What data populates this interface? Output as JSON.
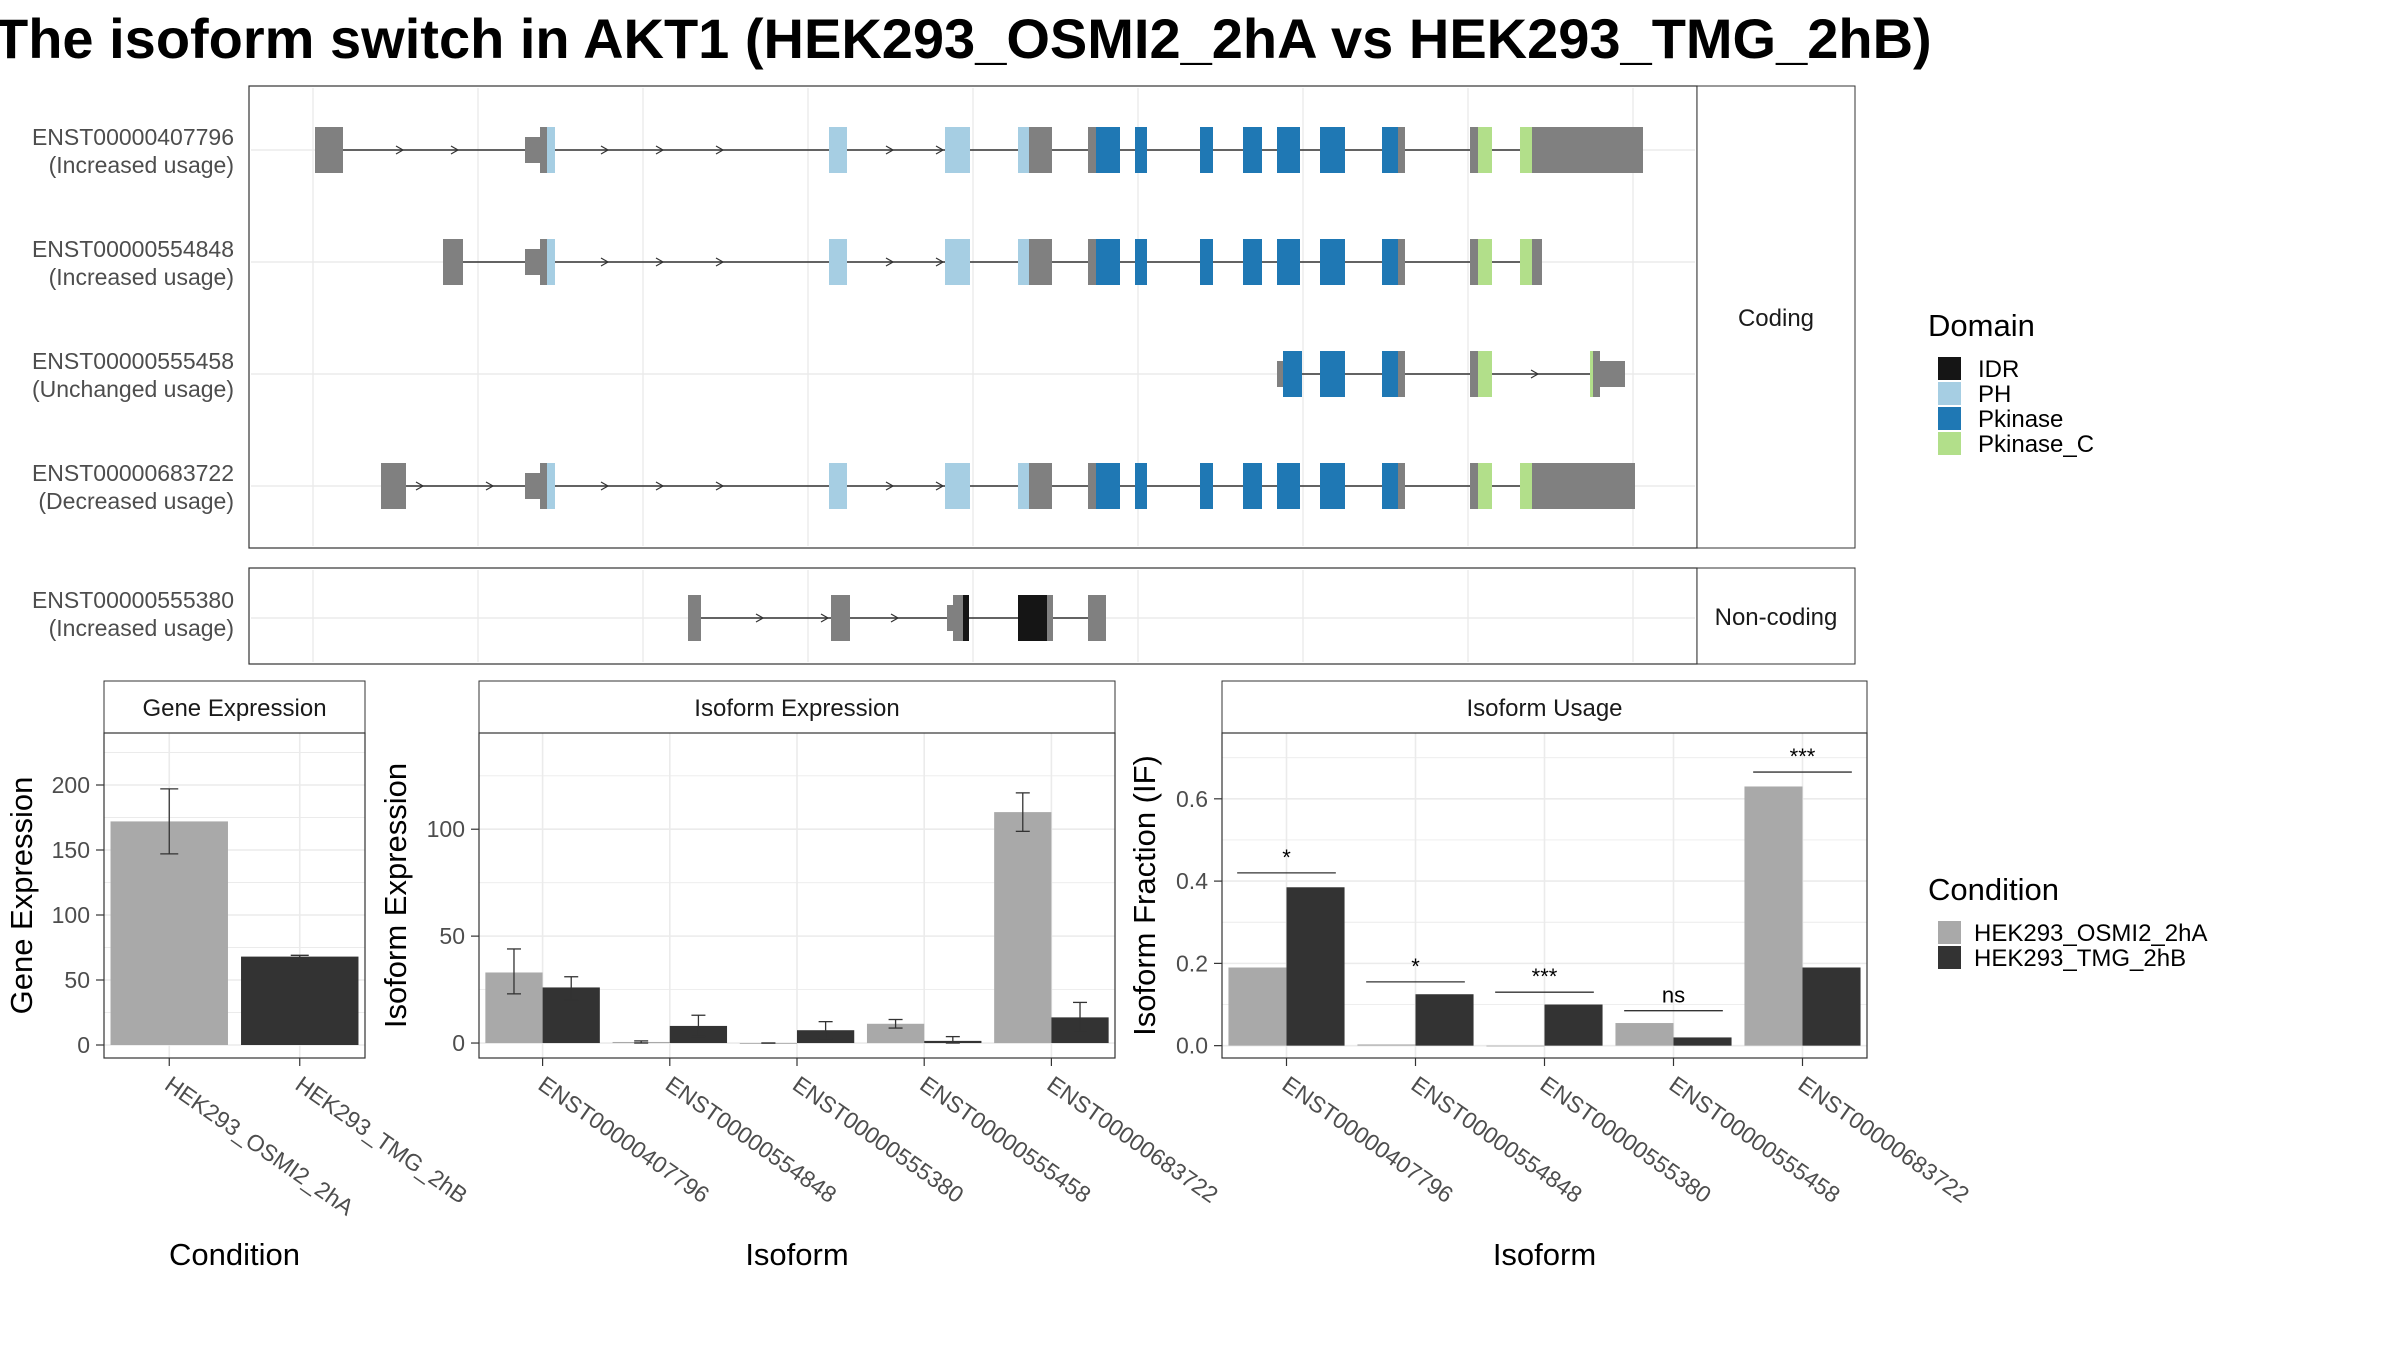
{
  "title": "The isoform switch in AKT1 (HEK293_OSMI2_2hA vs HEK293_TMG_2hB)",
  "colors": {
    "IDR": "#151515",
    "PH": "#a6cee3",
    "Pkinase": "#1f78b4",
    "Pkinase_C": "#b2df8a",
    "exon": "#808080",
    "HEK293_OSMI2_2hA": "#a9a9a9",
    "HEK293_TMG_2hB": "#333333"
  },
  "structure": {
    "facets": {
      "coding": "Coding",
      "noncoding": "Non-coding"
    },
    "isoforms": [
      {
        "id": "ENST00000407796",
        "status": "(Increased usage)"
      },
      {
        "id": "ENST00000554848",
        "status": "(Increased usage)"
      },
      {
        "id": "ENST00000555458",
        "status": "(Unchanged usage)"
      },
      {
        "id": "ENST00000683722",
        "status": "(Decreased usage)"
      },
      {
        "id": "ENST00000555380",
        "status": "(Increased usage)"
      }
    ]
  },
  "legend": {
    "domain_title": "Domain",
    "domains": [
      "IDR",
      "PH",
      "Pkinase",
      "Pkinase_C"
    ],
    "condition_title": "Condition",
    "conditions": [
      "HEK293_OSMI2_2hA",
      "HEK293_TMG_2hB"
    ]
  },
  "chart_data": [
    {
      "type": "bar",
      "title": "Gene Expression",
      "xlabel": "Condition",
      "ylabel": "Gene Expression",
      "categories": [
        "HEK293_OSMI2_2hA",
        "HEK293_TMG_2hB"
      ],
      "values": [
        172,
        68
      ],
      "errors": [
        [
          147,
          197
        ],
        [
          67,
          69
        ]
      ],
      "yticks": [
        0,
        50,
        100,
        150,
        200
      ],
      "ylim": [
        -10,
        240
      ]
    },
    {
      "type": "bar",
      "title": "Isoform Expression",
      "xlabel": "Isoform",
      "ylabel": "Isoform Expression",
      "categories": [
        "ENST00000407796",
        "ENST00000554848",
        "ENST00000555380",
        "ENST00000555458",
        "ENST00000683722"
      ],
      "series": [
        {
          "name": "HEK293_OSMI2_2hA",
          "values": [
            33,
            0.5,
            0,
            9,
            108
          ],
          "errors": [
            [
              23,
              44
            ],
            [
              0,
              1
            ],
            [
              0,
              0
            ],
            [
              7,
              11
            ],
            [
              99,
              117
            ]
          ]
        },
        {
          "name": "HEK293_TMG_2hB",
          "values": [
            26,
            8,
            6,
            1,
            12
          ],
          "errors": [
            [
              20,
              31
            ],
            [
              3,
              13
            ],
            [
              2,
              10
            ],
            [
              0,
              3
            ],
            [
              5,
              19
            ]
          ]
        }
      ],
      "yticks": [
        0,
        50,
        100
      ],
      "ylim": [
        -7,
        145
      ]
    },
    {
      "type": "bar",
      "title": "Isoform Usage",
      "xlabel": "Isoform",
      "ylabel": "Isoform Fraction (IF)",
      "categories": [
        "ENST00000407796",
        "ENST00000554848",
        "ENST00000555380",
        "ENST00000555458",
        "ENST00000683722"
      ],
      "series": [
        {
          "name": "HEK293_OSMI2_2hA",
          "values": [
            0.19,
            0.003,
            0.0,
            0.055,
            0.63
          ]
        },
        {
          "name": "HEK293_TMG_2hB",
          "values": [
            0.385,
            0.125,
            0.1,
            0.02,
            0.19
          ]
        }
      ],
      "significance": [
        "*",
        "*",
        "***",
        "ns",
        "***"
      ],
      "sig_y": [
        0.42,
        0.155,
        0.13,
        0.085,
        0.665
      ],
      "yticks": [
        0.0,
        0.2,
        0.4,
        0.6
      ],
      "ytick_labels": [
        "0.0",
        "0.2",
        "0.4",
        "0.6"
      ],
      "ylim": [
        -0.03,
        0.76
      ]
    }
  ]
}
